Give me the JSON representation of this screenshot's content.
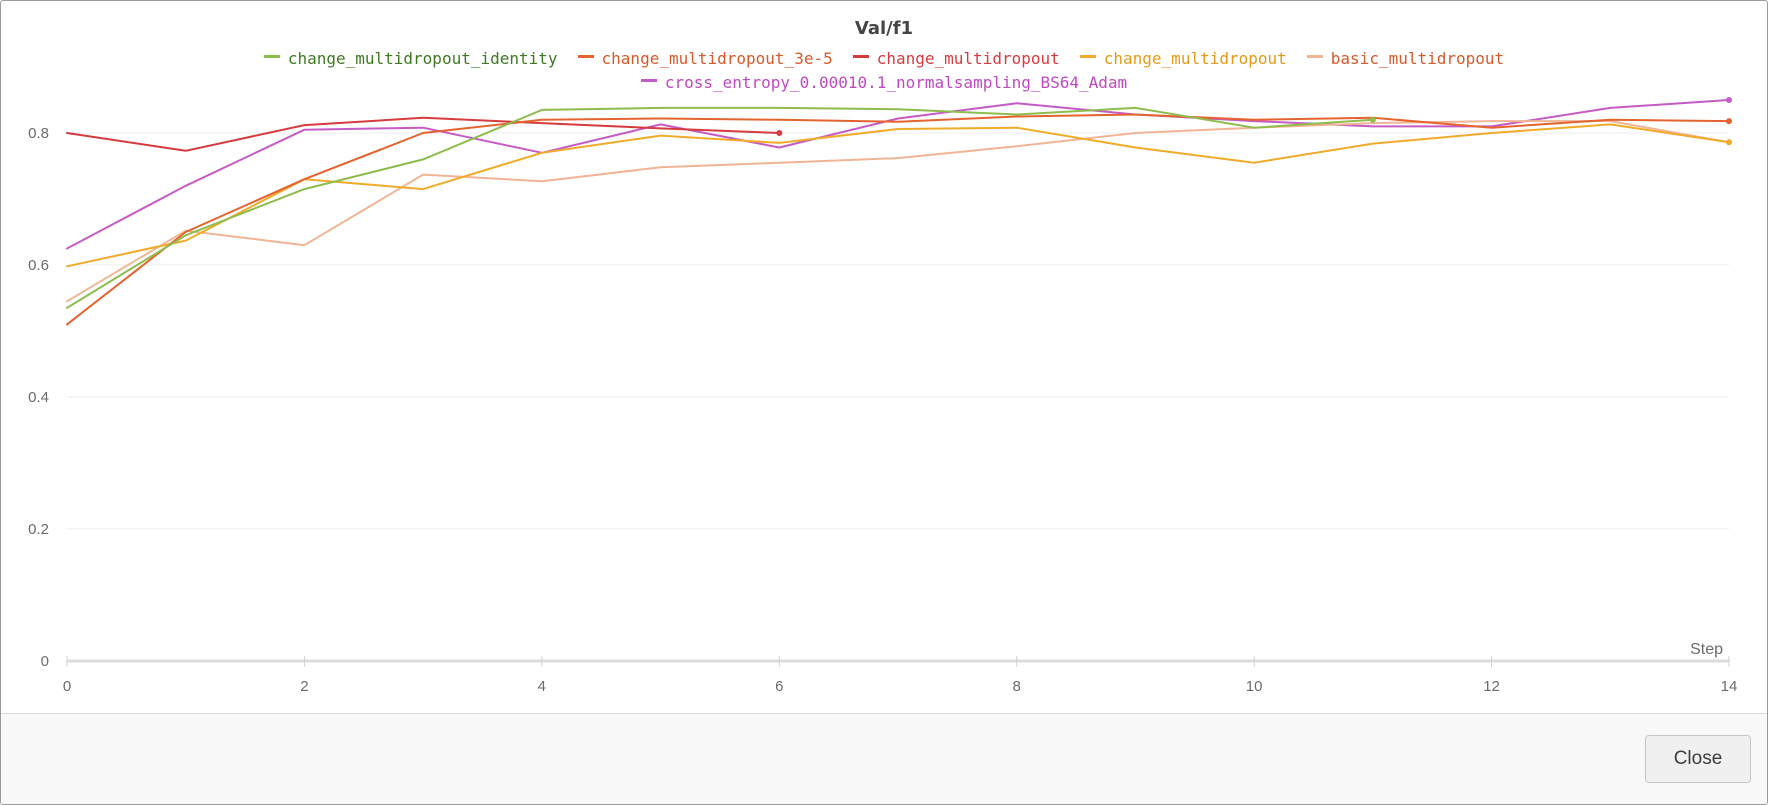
{
  "chart_data": {
    "type": "line",
    "title": "Val/f1",
    "xlabel": "Step",
    "ylabel": "",
    "xlim": [
      0,
      14
    ],
    "ylim": [
      0,
      0.9
    ],
    "x_ticks": [
      0,
      2,
      4,
      6,
      8,
      10,
      12,
      14
    ],
    "y_ticks": [
      0,
      0.2,
      0.4,
      0.6,
      0.8
    ],
    "x_tick_labels": [
      "0",
      "2",
      "4",
      "6",
      "8",
      "10",
      "12",
      "14"
    ],
    "y_tick_labels": [
      "0",
      "0.2",
      "0.4",
      "0.6",
      "0.8"
    ],
    "grid": "horizontal",
    "legend_position": "top",
    "series": [
      {
        "name": "change_multidropout_identity",
        "color": "#8ebd4e",
        "label_color": "#3f7a22",
        "x": [
          0,
          1,
          2,
          3,
          4,
          5,
          6,
          7,
          8,
          9,
          10,
          11
        ],
        "y": [
          0.535,
          0.645,
          0.715,
          0.76,
          0.835,
          0.838,
          0.838,
          0.836,
          0.828,
          0.838,
          0.808,
          0.82
        ]
      },
      {
        "name": "change_multidropout_3e-5",
        "color": "#e4632f",
        "label_color": "#d65a2a",
        "x": [
          0,
          1,
          2,
          3,
          4,
          5,
          6,
          7,
          8,
          9,
          10,
          11,
          12,
          13,
          14
        ],
        "y": [
          0.51,
          0.65,
          0.73,
          0.8,
          0.82,
          0.822,
          0.82,
          0.817,
          0.825,
          0.828,
          0.82,
          0.823,
          0.808,
          0.82,
          0.818
        ]
      },
      {
        "name": "change_multidropout",
        "color": "#d63b3f",
        "label_color": "#d63b3f",
        "x": [
          0,
          1,
          2,
          3,
          4,
          5,
          6
        ],
        "y": [
          0.8,
          0.773,
          0.812,
          0.823,
          0.815,
          0.807,
          0.8
        ]
      },
      {
        "name": "change_multidropout",
        "color": "#f0ab2a",
        "label_color": "#e39a18",
        "x": [
          0,
          1,
          2,
          3,
          4,
          5,
          6,
          7,
          8,
          9,
          10,
          11,
          12,
          13,
          14
        ],
        "y": [
          0.598,
          0.637,
          0.73,
          0.715,
          0.77,
          0.796,
          0.785,
          0.806,
          0.808,
          0.778,
          0.755,
          0.784,
          0.8,
          0.813,
          0.786
        ]
      },
      {
        "name": "basic_multidropout",
        "color": "#f1b596",
        "label_color": "#d65a2a",
        "x": [
          0,
          1,
          2,
          3,
          4,
          5,
          6,
          7,
          8,
          9,
          10,
          11,
          12,
          13,
          14
        ],
        "y": [
          0.545,
          0.652,
          0.63,
          0.737,
          0.727,
          0.748,
          0.755,
          0.762,
          0.78,
          0.8,
          0.808,
          0.815,
          0.818,
          0.818,
          0.786
        ]
      },
      {
        "name": "cross_entropy_0.00010.1_normalsampling_BS64_Adam",
        "color": "#c55bc5",
        "label_color": "#c048c0",
        "x": [
          0,
          1,
          2,
          3,
          4,
          5,
          6,
          7,
          8,
          9,
          10,
          11,
          12,
          13,
          14
        ],
        "y": [
          0.625,
          0.72,
          0.805,
          0.808,
          0.77,
          0.813,
          0.778,
          0.822,
          0.845,
          0.828,
          0.818,
          0.81,
          0.81,
          0.838,
          0.85
        ]
      }
    ]
  },
  "footer": {
    "close_label": "Close"
  }
}
